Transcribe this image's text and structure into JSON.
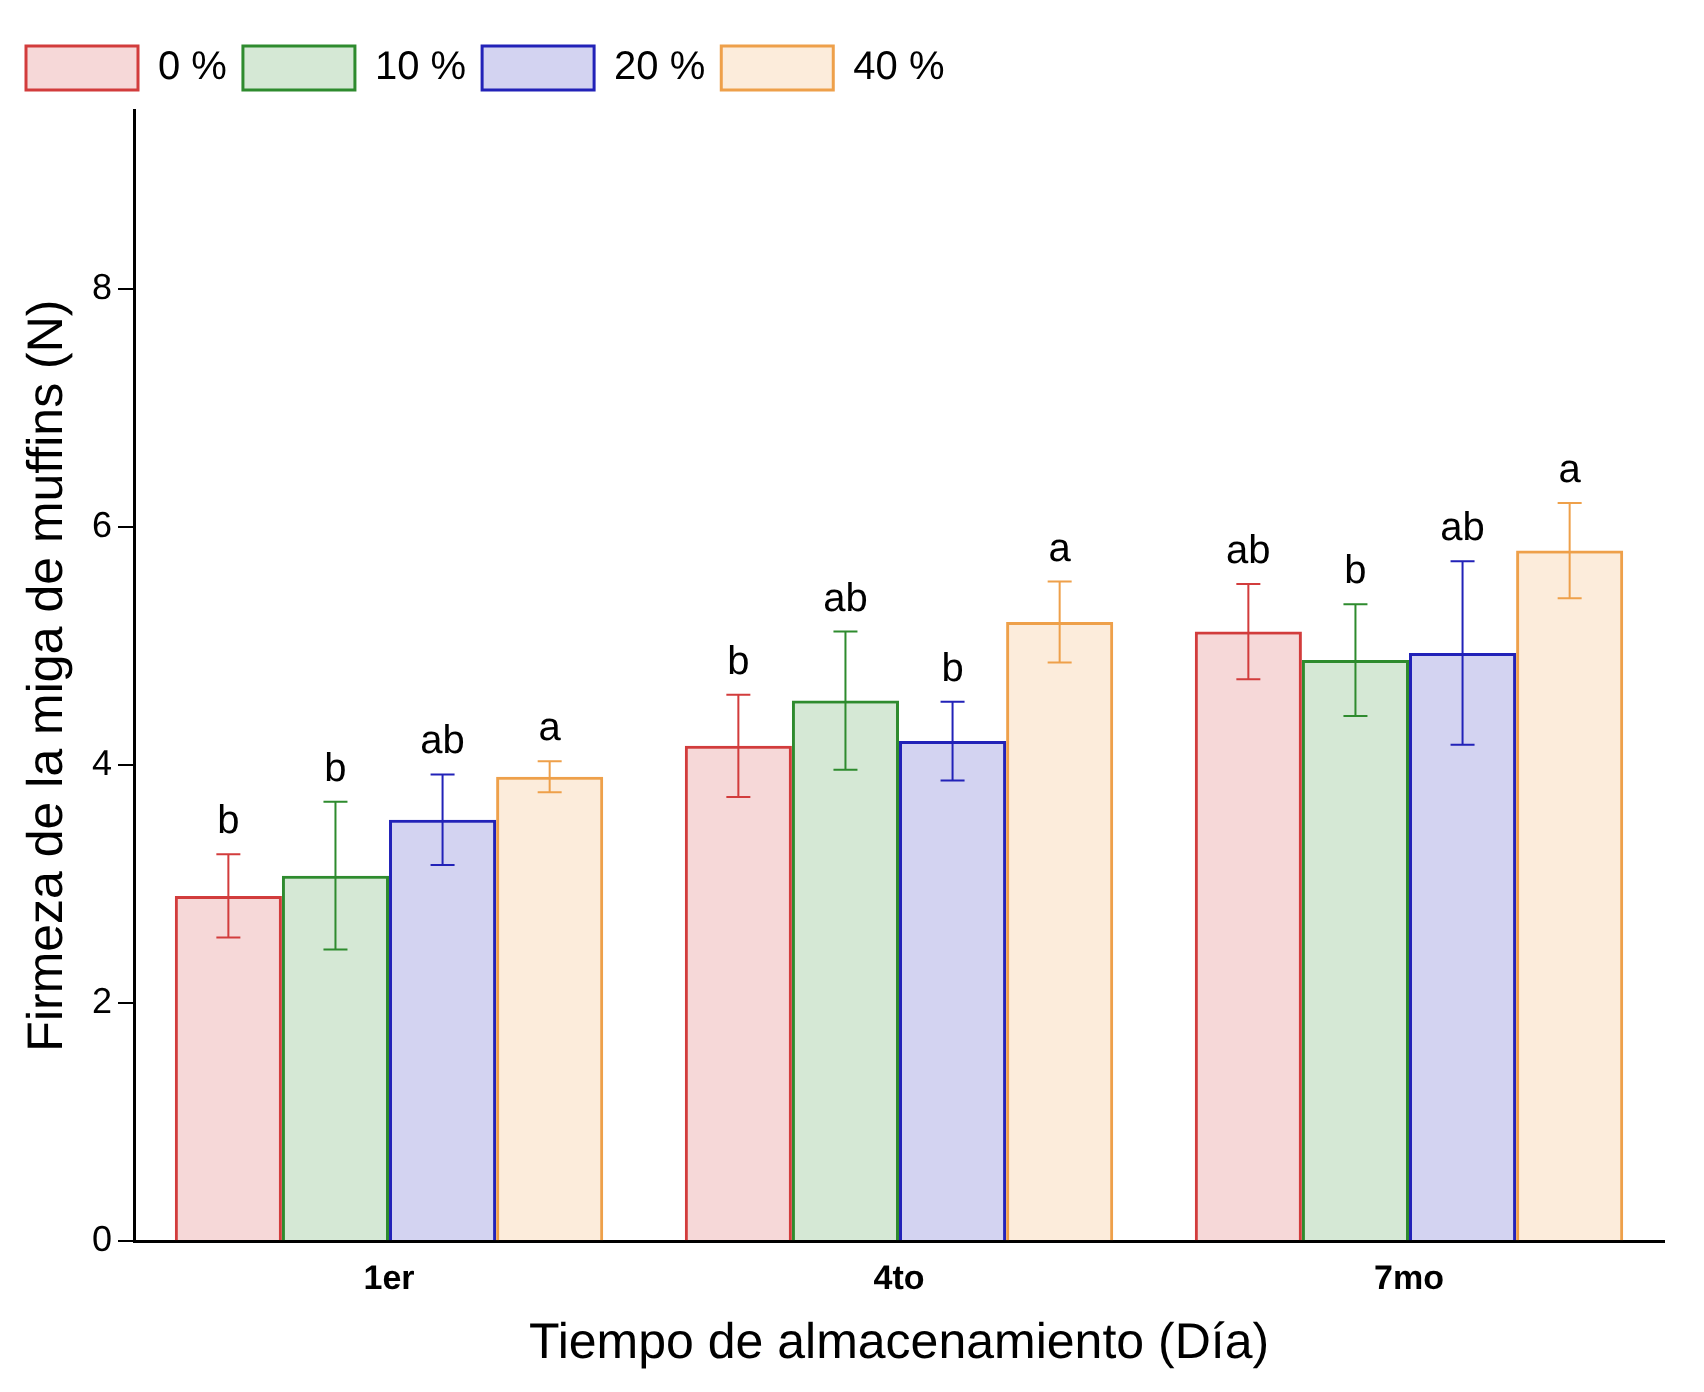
{
  "chart_data": {
    "type": "bar",
    "xlabel": "Tiempo de almacenamiento (Día)",
    "ylabel": "Firmeza de la miga de muffins (N)",
    "categories": [
      "1er",
      "4to",
      "7mo"
    ],
    "series": [
      {
        "name": "0 %",
        "color": "#d23c3c",
        "values": [
          2.9,
          4.16,
          5.12
        ],
        "errors": [
          0.35,
          0.43,
          0.4
        ],
        "value_labels": [
          "b",
          "b",
          "ab"
        ]
      },
      {
        "name": "10 %",
        "color": "#2e8b2e",
        "values": [
          3.07,
          4.54,
          4.88
        ],
        "errors": [
          0.62,
          0.58,
          0.47
        ],
        "value_labels": [
          "b",
          "ab",
          "b"
        ]
      },
      {
        "name": "20 %",
        "color": "#2222b8",
        "values": [
          3.54,
          4.2,
          4.94
        ],
        "errors": [
          0.38,
          0.33,
          0.77
        ],
        "value_labels": [
          "ab",
          "b",
          "ab"
        ]
      },
      {
        "name": "40 %",
        "color": "#eea04a",
        "values": [
          3.9,
          5.2,
          5.8
        ],
        "errors": [
          0.13,
          0.34,
          0.4
        ],
        "value_labels": [
          "a",
          "a",
          "a"
        ]
      }
    ],
    "ylim": [
      0,
      9.5
    ],
    "yticks": [
      0,
      2,
      4,
      6,
      8
    ],
    "grid": false,
    "legend": "top left"
  }
}
